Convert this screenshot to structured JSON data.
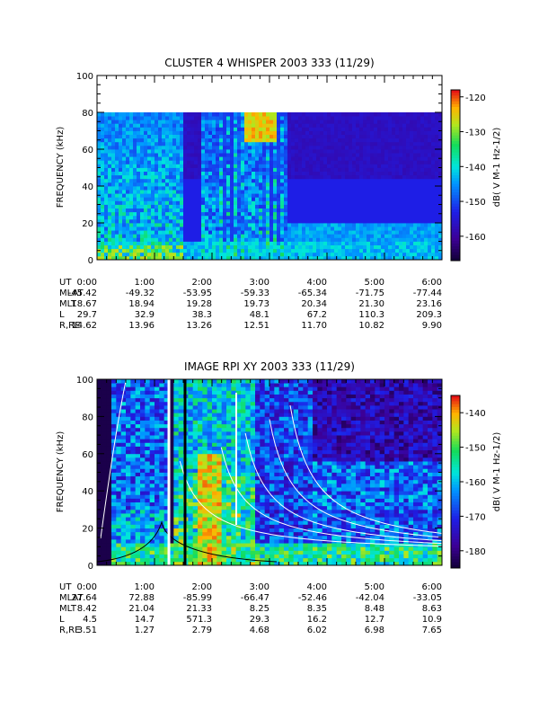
{
  "chart_data": [
    {
      "type": "heatmap",
      "title": "CLUSTER 4 WHISPER 2003 333 (11/29)",
      "ylabel": "FREQUENCY (kHz)",
      "ylim": [
        0,
        100
      ],
      "y_ticks": [
        "0",
        "20",
        "40",
        "60",
        "80",
        "100"
      ],
      "x_ticks": [
        "0:00",
        "1:00",
        "2:00",
        "3:00",
        "4:00",
        "5:00",
        "6:00"
      ],
      "colorbar": {
        "label": "dB( V M-1 Hz-1/2)",
        "ticks": [
          "-120",
          "-130",
          "-140",
          "-150",
          "-160"
        ],
        "range": [
          -167,
          -118
        ]
      },
      "data_upper_limit_khz": 80,
      "ephemeris": [
        {
          "label": "UT",
          "values": [
            "0:00",
            "1:00",
            "2:00",
            "3:00",
            "4:00",
            "5:00",
            "6:00"
          ]
        },
        {
          "label": "MLAT",
          "values": [
            "-45.42",
            "-49.32",
            "-53.95",
            "-59.33",
            "-65.34",
            "-71.75",
            "-77.44"
          ]
        },
        {
          "label": "MLT",
          "values": [
            "18.67",
            "18.94",
            "19.28",
            "19.73",
            "20.34",
            "21.30",
            "23.16"
          ]
        },
        {
          "label": "L",
          "values": [
            "29.7",
            "32.9",
            "38.3",
            "48.1",
            "67.2",
            "110.3",
            "209.3"
          ]
        },
        {
          "label": "R,RE",
          "values": [
            "14.62",
            "13.96",
            "13.26",
            "12.51",
            "11.70",
            "10.82",
            "9.90"
          ]
        }
      ]
    },
    {
      "type": "heatmap",
      "title": "IMAGE RPI XY 2003 333 (11/29)",
      "ylabel": "FREQUENCY (kHz)",
      "ylim": [
        0,
        100
      ],
      "y_ticks": [
        "0",
        "20",
        "40",
        "60",
        "80",
        "100"
      ],
      "x_ticks": [
        "0:00",
        "1:00",
        "2:00",
        "3:00",
        "4:00",
        "5:00",
        "6:00"
      ],
      "colorbar": {
        "label": "dB( V M-1 Hz-1/2)",
        "ticks": [
          "-140",
          "-150",
          "-160",
          "-170",
          "-180"
        ],
        "range": [
          -185,
          -135
        ]
      },
      "ephemeris": [
        {
          "label": "UT",
          "values": [
            "0:00",
            "1:00",
            "2:00",
            "3:00",
            "4:00",
            "5:00",
            "6:00"
          ]
        },
        {
          "label": "MLAT",
          "values": [
            "27.64",
            "72.88",
            "-85.99",
            "-66.47",
            "-52.46",
            "-42.04",
            "-33.05"
          ]
        },
        {
          "label": "MLT",
          "values": [
            "8.42",
            "21.04",
            "21.33",
            "8.25",
            "8.35",
            "8.48",
            "8.63"
          ]
        },
        {
          "label": "L",
          "values": [
            "4.5",
            "14.7",
            "571.3",
            "29.3",
            "16.2",
            "12.7",
            "10.9"
          ]
        },
        {
          "label": "R,RE",
          "values": [
            "3.51",
            "1.27",
            "2.79",
            "4.68",
            "6.02",
            "6.98",
            "7.65"
          ]
        }
      ]
    }
  ]
}
